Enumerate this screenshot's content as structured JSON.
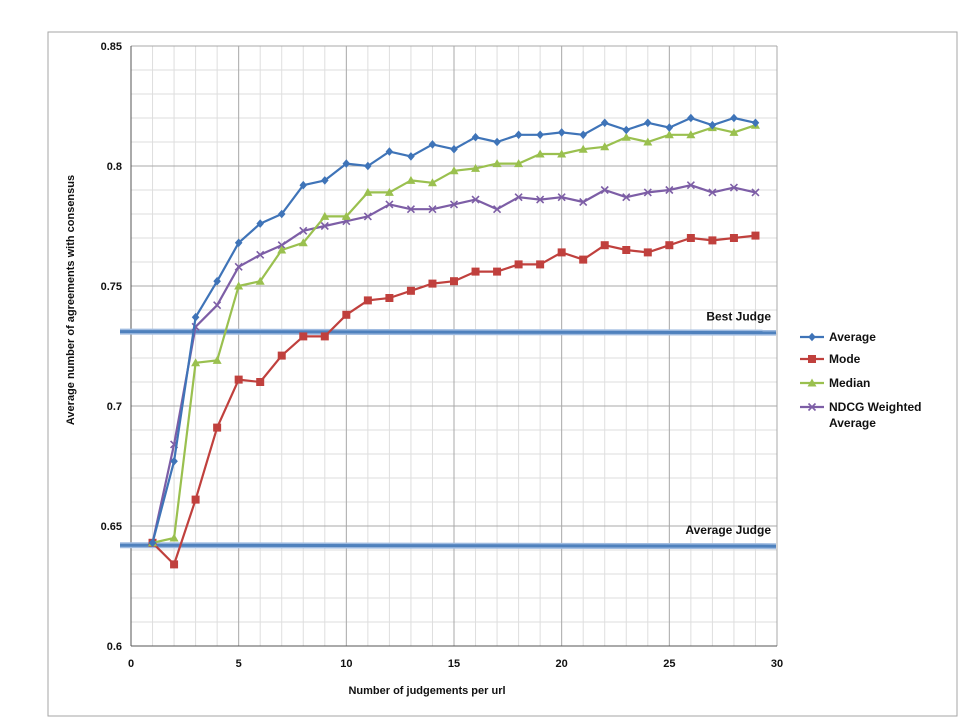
{
  "chart_data": {
    "type": "line",
    "xlabel": "Number of judgements per url",
    "ylabel": "Average number of agreements with consensus",
    "xlim": [
      0,
      30
    ],
    "ylim": [
      0.6,
      0.85
    ],
    "x_ticks": [
      "0",
      "5",
      "10",
      "15",
      "20",
      "25",
      "30"
    ],
    "y_ticks": [
      "0.6",
      "0.65",
      "0.7",
      "0.75",
      "0.8",
      "0.85"
    ],
    "x_tick_values": [
      0,
      5,
      10,
      15,
      20,
      25,
      30
    ],
    "y_tick_values": [
      0.6,
      0.65,
      0.7,
      0.75,
      0.8,
      0.85
    ],
    "grid": true,
    "legend_position": "right",
    "x": [
      1,
      2,
      3,
      4,
      5,
      6,
      7,
      8,
      9,
      10,
      11,
      12,
      13,
      14,
      15,
      16,
      17,
      18,
      19,
      20,
      21,
      22,
      23,
      24,
      25,
      26,
      27,
      28,
      29
    ],
    "series": [
      {
        "name": "Average",
        "color": "#3f74b8",
        "marker": "diamond",
        "values": [
          0.643,
          0.677,
          0.737,
          0.752,
          0.768,
          0.776,
          0.78,
          0.792,
          0.794,
          0.801,
          0.8,
          0.806,
          0.804,
          0.809,
          0.807,
          0.812,
          0.81,
          0.813,
          0.813,
          0.814,
          0.813,
          0.818,
          0.815,
          0.818,
          0.816,
          0.82,
          0.817,
          0.82,
          0.818
        ]
      },
      {
        "name": "Mode",
        "color": "#c0403d",
        "marker": "square",
        "values": [
          0.643,
          0.634,
          0.661,
          0.691,
          0.711,
          0.71,
          0.721,
          0.729,
          0.729,
          0.738,
          0.744,
          0.745,
          0.748,
          0.751,
          0.752,
          0.756,
          0.756,
          0.759,
          0.759,
          0.764,
          0.761,
          0.767,
          0.765,
          0.764,
          0.767,
          0.77,
          0.769,
          0.77,
          0.771
        ]
      },
      {
        "name": "Median",
        "color": "#9ac04f",
        "marker": "triangle",
        "values": [
          0.643,
          0.645,
          0.718,
          0.719,
          0.75,
          0.752,
          0.765,
          0.768,
          0.779,
          0.779,
          0.789,
          0.789,
          0.794,
          0.793,
          0.798,
          0.799,
          0.801,
          0.801,
          0.805,
          0.805,
          0.807,
          0.808,
          0.812,
          0.81,
          0.813,
          0.813,
          0.816,
          0.814,
          0.817
        ]
      },
      {
        "name": "NDCG Weighted Average",
        "color": "#7d5ea6",
        "marker": "x",
        "values": [
          0.643,
          0.684,
          0.733,
          0.742,
          0.758,
          0.763,
          0.767,
          0.773,
          0.775,
          0.777,
          0.779,
          0.784,
          0.782,
          0.782,
          0.784,
          0.786,
          0.782,
          0.787,
          0.786,
          0.787,
          0.785,
          0.79,
          0.787,
          0.789,
          0.79,
          0.792,
          0.789,
          0.791,
          0.789
        ]
      }
    ],
    "legend_lines": [
      [
        "Average"
      ],
      [
        "Mode"
      ],
      [
        "Median"
      ],
      [
        "NDCG Weighted",
        "Average"
      ]
    ],
    "reference_lines": [
      {
        "name": "Best Judge",
        "label": "Best Judge",
        "value": 0.731,
        "color": "#4f81bd"
      },
      {
        "name": "Average Judge",
        "label": "Average Judge",
        "value": 0.642,
        "color": "#4f81bd"
      }
    ]
  }
}
